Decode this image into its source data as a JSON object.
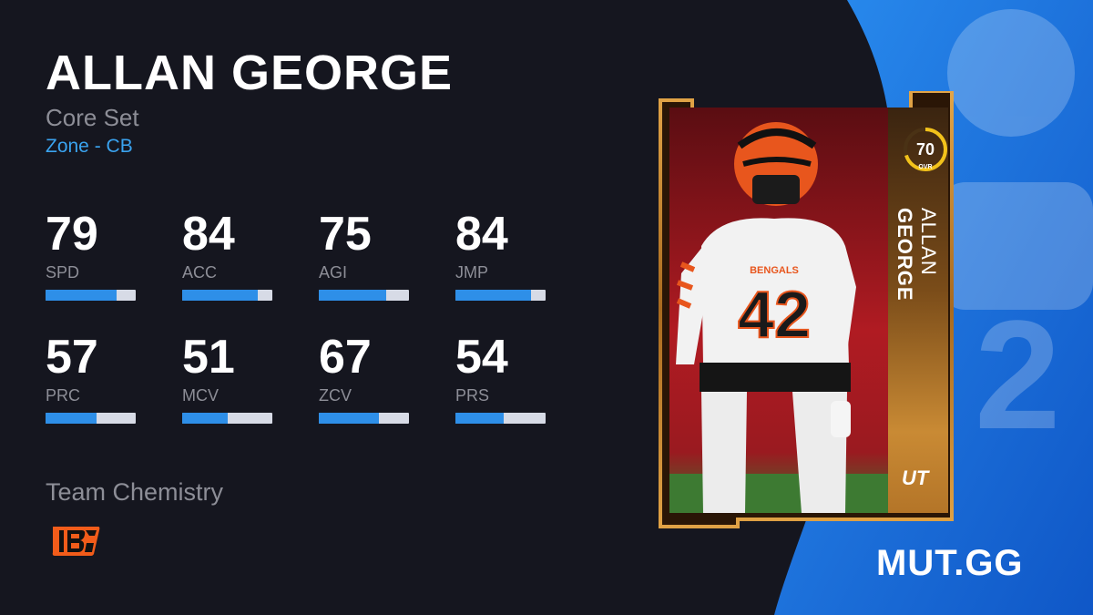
{
  "player": {
    "name": "ALLAN GEORGE",
    "set": "Core Set",
    "archetype": "Zone - CB"
  },
  "stats": [
    {
      "value": "79",
      "label": "SPD",
      "fill": 0.79
    },
    {
      "value": "84",
      "label": "ACC",
      "fill": 0.84
    },
    {
      "value": "75",
      "label": "AGI",
      "fill": 0.75
    },
    {
      "value": "84",
      "label": "JMP",
      "fill": 0.84
    },
    {
      "value": "57",
      "label": "PRC",
      "fill": 0.57
    },
    {
      "value": "51",
      "label": "MCV",
      "fill": 0.51
    },
    {
      "value": "67",
      "label": "ZCV",
      "fill": 0.67
    },
    {
      "value": "54",
      "label": "PRS",
      "fill": 0.54
    }
  ],
  "chemistry": {
    "title": "Team Chemistry",
    "team_icon": "bengals-logo-icon"
  },
  "card": {
    "ovr": "70",
    "ovr_label": "OVR",
    "first_name": "ALLAN",
    "last_name": "GEORGE",
    "jersey_number": "42",
    "jersey_text": "BENGALS",
    "program_badge": "UT"
  },
  "brand": "MUT.GG",
  "colors": {
    "background": "#15161f",
    "accent_blue": "#3aa3ef",
    "bar_fill": "#2e8fe8",
    "bar_track": "#d7dbe6",
    "card_gold": "#c88a2c",
    "bengals_orange": "#f25c1a"
  }
}
